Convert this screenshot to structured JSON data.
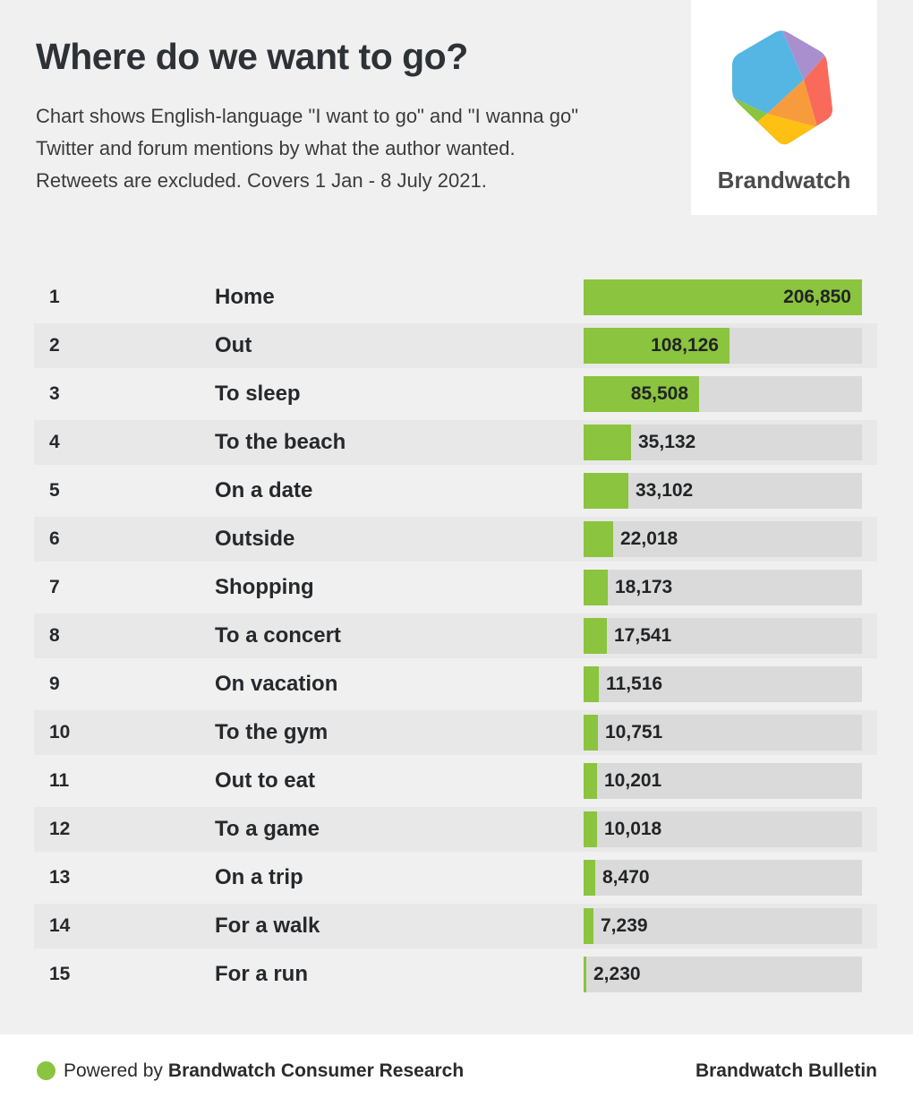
{
  "header": {
    "title": "Where do we want to go?",
    "subtitle_lines": [
      "Chart shows English-language \"I want to go\" and \"I wanna go\"",
      "Twitter and forum mentions by what the author wanted.",
      "Retweets are excluded. Covers 1 Jan - 8 July 2021."
    ]
  },
  "logo": {
    "brand_name": "Brandwatch",
    "colors": {
      "blue": "#55b6e3",
      "purple": "#a98fcd",
      "red": "#f96a5a",
      "orange": "#f89b3c",
      "yellow": "#fdc013",
      "green": "#8bc43e"
    }
  },
  "chart_data": {
    "type": "bar",
    "orientation": "horizontal",
    "title": "Where do we want to go?",
    "categories": [
      "Home",
      "Out",
      "To sleep",
      "To the beach",
      "On a date",
      "Outside",
      "Shopping",
      "To a concert",
      "On vacation",
      "To the gym",
      "Out to eat",
      "To a game",
      "On a trip",
      "For a walk",
      "For a run"
    ],
    "ranks": [
      1,
      2,
      3,
      4,
      5,
      6,
      7,
      8,
      9,
      10,
      11,
      12,
      13,
      14,
      15
    ],
    "values": [
      206850,
      108126,
      85508,
      35132,
      33102,
      22018,
      18173,
      17541,
      11516,
      10751,
      10201,
      10018,
      8470,
      7239,
      2230
    ],
    "value_labels": [
      "206,850",
      "108,126",
      "85,508",
      "35,132",
      "33,102",
      "22,018",
      "18,173",
      "17,541",
      "11,516",
      "10,751",
      "10,201",
      "10,018",
      "8,470",
      "7,239",
      "2,230"
    ],
    "xlim": [
      0,
      206850
    ],
    "grid": false,
    "legend": "none",
    "bar_color": "#8bc43e",
    "track_color": "#dadada"
  },
  "footer": {
    "powered_by_prefix": "Powered by",
    "powered_by_brand": "Brandwatch Consumer Research",
    "bulletin": "Brandwatch Bulletin",
    "dot_color": "#8bc43e"
  }
}
